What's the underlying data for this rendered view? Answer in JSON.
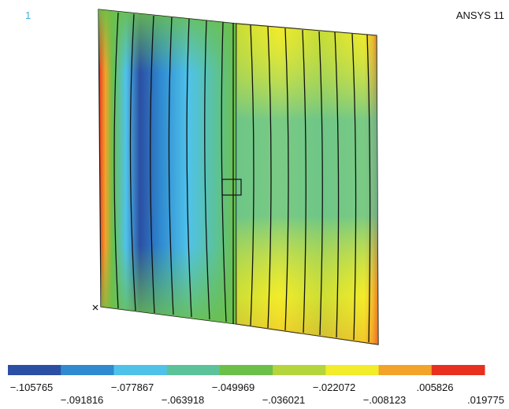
{
  "window_number": "1",
  "title": "ANSYS 11",
  "legend": {
    "colors": [
      "#2b4fa3",
      "#2f8ad0",
      "#4fc2ea",
      "#5cc29a",
      "#6cc04a",
      "#b4d53c",
      "#f2ec2a",
      "#f2a32a",
      "#e8301e"
    ],
    "labels": [
      "−.105765",
      "−.091816",
      "−.077867",
      "−.063918",
      "−.049969",
      "−.036021",
      "−.022072",
      "−.008123",
      ".005826",
      ".019775"
    ]
  }
}
